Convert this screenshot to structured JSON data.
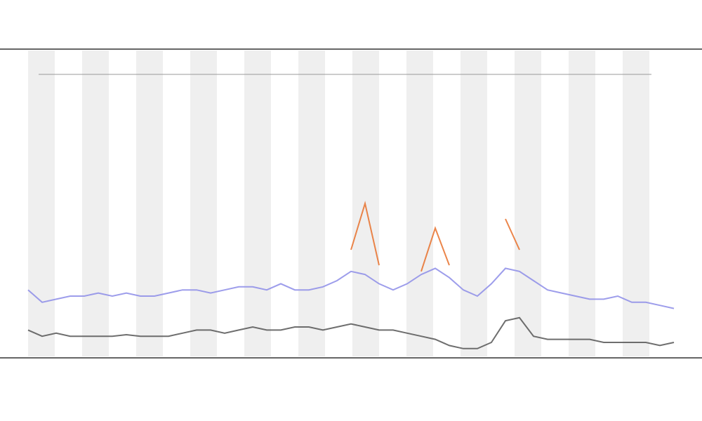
{
  "chart_data": {
    "type": "line",
    "ylim": [
      0,
      100
    ],
    "series": [
      {
        "color": "#555555",
        "values": [
          9,
          7,
          8,
          7,
          7,
          7,
          7,
          7.5,
          7,
          7,
          7,
          8,
          9,
          9,
          8,
          9,
          10,
          9,
          9,
          10,
          10,
          9,
          10,
          11,
          10,
          9,
          9,
          8,
          7,
          6,
          4,
          3,
          3,
          5,
          12,
          13,
          7,
          6,
          6,
          6,
          6,
          5,
          5,
          5,
          5,
          4,
          5
        ]
      },
      {
        "color": "#8c8ce8",
        "values": [
          22,
          18,
          19,
          20,
          20,
          21,
          20,
          21,
          20,
          20,
          21,
          22,
          22,
          21,
          22,
          23,
          23,
          22,
          24,
          22,
          22,
          23,
          25,
          28,
          27,
          24,
          22,
          24,
          27,
          29,
          26,
          22,
          20,
          24,
          29,
          28,
          25,
          22,
          21,
          20,
          19,
          19,
          20,
          18,
          18,
          17,
          16
        ]
      },
      {
        "color": "#e8702a",
        "values": [
          null,
          null,
          null,
          null,
          null,
          null,
          null,
          null,
          null,
          null,
          null,
          null,
          null,
          null,
          null,
          null,
          null,
          null,
          null,
          null,
          null,
          null,
          null,
          35,
          50,
          30,
          null,
          null,
          28,
          42,
          30,
          null,
          null,
          null,
          45,
          35,
          null,
          null,
          null,
          null,
          null,
          null,
          null,
          null,
          null,
          null,
          null
        ]
      }
    ]
  }
}
